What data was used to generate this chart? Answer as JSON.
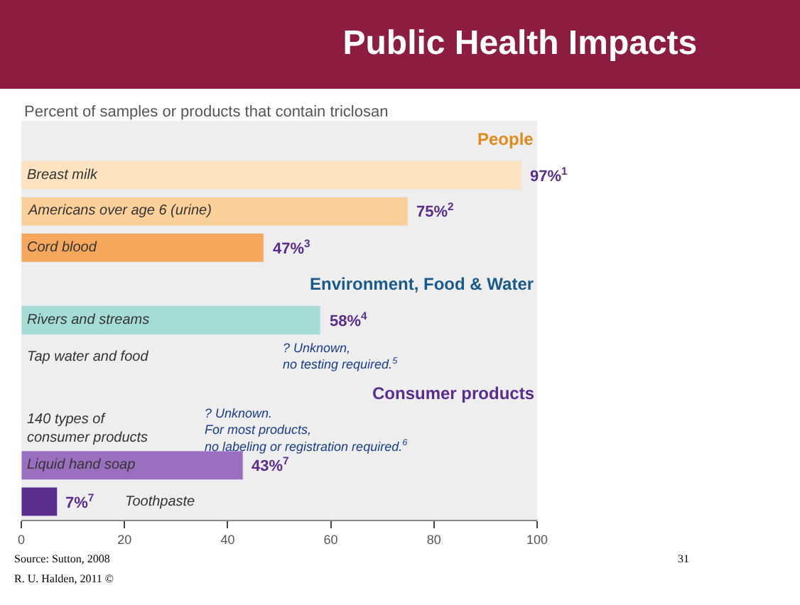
{
  "chart_data": {
    "type": "bar",
    "orientation": "horizontal",
    "title": "Public Health Impacts",
    "subtitle": "Percent of samples or products that contain triclosan",
    "categories": [
      null,
      "Breast milk",
      "Americans over age 6 (urine)",
      "Cord blood",
      null,
      "Rivers and streams",
      "Tap water and food",
      null,
      "140 types of\nconsumer products",
      "Liquid hand soap",
      "Toothpaste"
    ],
    "values": [
      null,
      97,
      75,
      47,
      null,
      58,
      null,
      null,
      null,
      43,
      7
    ],
    "colors": [
      null,
      "#fde3c0",
      "#fcd09a",
      "#f5a75c",
      null,
      "#a6dcd6",
      null,
      null,
      null,
      "#9b6fbf",
      "#5a2d8c"
    ],
    "value_labels": [
      null,
      "97%$^{1}$",
      "75%$^{2}$",
      "47%$^{3}$",
      null,
      "58%$^{4}$",
      null,
      null,
      null,
      "43%$^{7}$",
      "7%$^{7}$"
    ],
    "annotations": [
      "People",
      "Environment, Food & Water",
      "Consumer products",
      "? Unknown,\nno testing required.$^{5}$",
      "? Unknown.\nFor most products,\nno labeling or registration required.$^{6}$",
      "Source: Sutton, 2008",
      "R. U. Halden, 2011 ©",
      "31"
    ],
    "xlim": [
      0,
      100
    ],
    "xticks": [
      0,
      20,
      40,
      60,
      80,
      100
    ],
    "tick_labels": "x",
    "grid": false,
    "legend": false
  }
}
